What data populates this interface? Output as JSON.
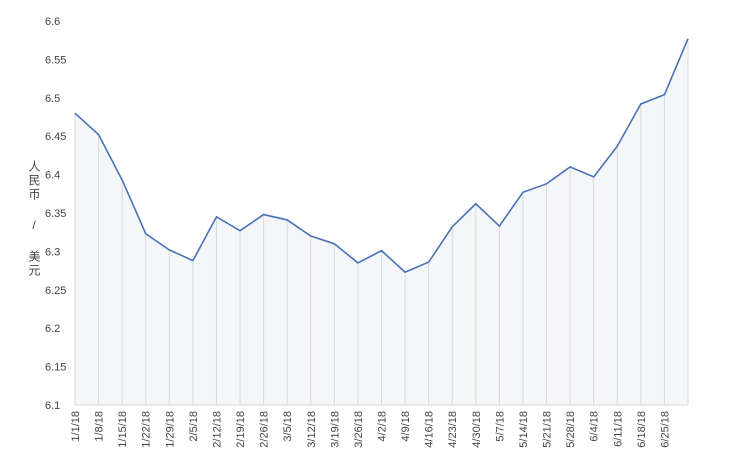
{
  "chart_data": {
    "type": "line",
    "y_label": "人民币 / 美元",
    "categories": [
      "1/1/18",
      "1/8/18",
      "1/15/18",
      "1/22/18",
      "1/29/18",
      "2/5/18",
      "2/12/18",
      "2/19/18",
      "2/26/18",
      "3/5/18",
      "3/12/18",
      "3/19/18",
      "3/26/18",
      "4/2/18",
      "4/9/18",
      "4/16/18",
      "4/23/18",
      "4/30/18",
      "5/7/18",
      "5/14/18",
      "5/21/18",
      "5/28/18",
      "6/4/18",
      "6/11/18",
      "6/18/18",
      "6/25/18",
      null
    ],
    "values": [
      6.48,
      6.452,
      6.393,
      6.323,
      6.302,
      6.288,
      6.345,
      6.327,
      6.348,
      6.341,
      6.32,
      6.31,
      6.285,
      6.301,
      6.273,
      6.286,
      6.332,
      6.362,
      6.333,
      6.377,
      6.388,
      6.41,
      6.397,
      6.437,
      6.492,
      6.504,
      6.577
    ],
    "color": "#4a72b8",
    "ylim": [
      6.1,
      6.6
    ],
    "yticks": [
      6.1,
      6.15,
      6.2,
      6.25,
      6.3,
      6.35,
      6.4,
      6.45,
      6.5,
      6.55,
      6.6
    ]
  }
}
